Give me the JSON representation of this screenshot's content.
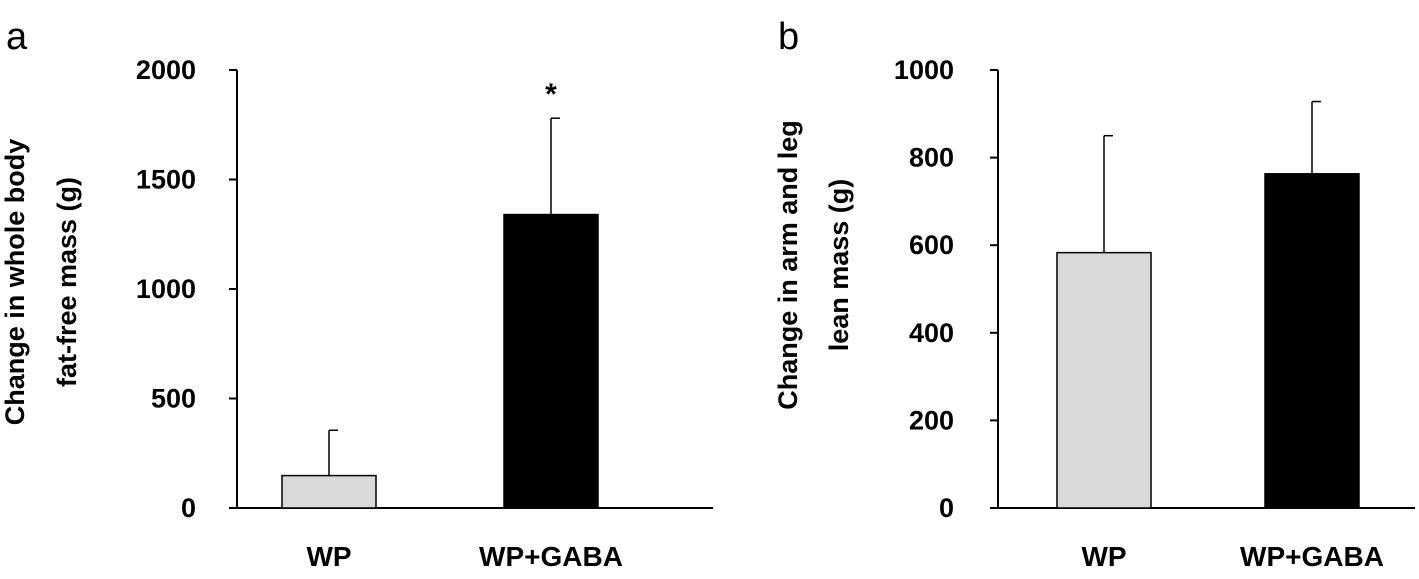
{
  "chart_data": [
    {
      "type": "bar",
      "panel_label": "a",
      "categories": [
        "WP",
        "WP+GABA"
      ],
      "values": [
        148,
        1340
      ],
      "error_upper": [
        355,
        1780
      ],
      "ylabel_lines": [
        "Change in whole body",
        "fat-free mass (g)"
      ],
      "ylim": [
        0,
        2000
      ],
      "yticks": [
        0,
        500,
        1000,
        1500,
        2000
      ],
      "bar_colors": [
        "#d9d9d9",
        "#000000"
      ],
      "annotations": [
        {
          "category": "WP+GABA",
          "text": "*"
        }
      ],
      "grid": false
    },
    {
      "type": "bar",
      "panel_label": "b",
      "categories": [
        "WP",
        "WP+GABA"
      ],
      "values": [
        583,
        763
      ],
      "error_upper": [
        850,
        928
      ],
      "ylabel_lines": [
        "Change in arm and leg",
        "lean mass  (g)"
      ],
      "ylim": [
        0,
        1000
      ],
      "yticks": [
        0,
        200,
        400,
        600,
        800,
        1000
      ],
      "bar_colors": [
        "#d9d9d9",
        "#000000"
      ],
      "annotations": [],
      "grid": false
    }
  ]
}
